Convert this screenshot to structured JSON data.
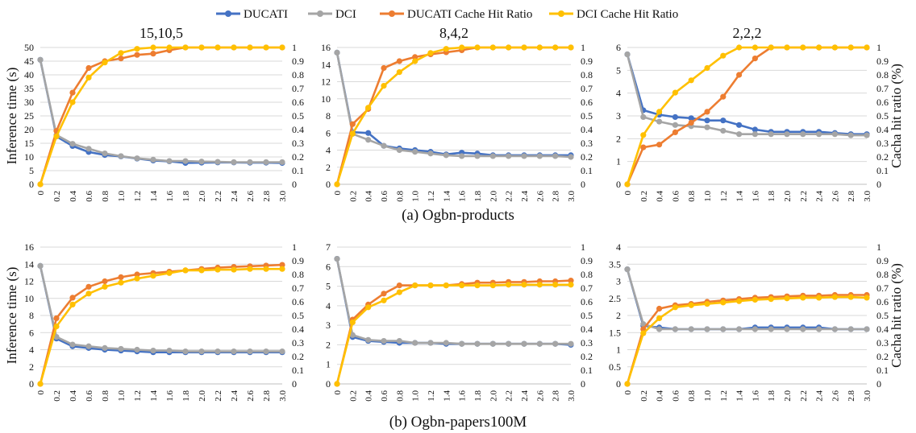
{
  "legend": [
    {
      "name": "DUCATI",
      "color": "#4472c4"
    },
    {
      "name": "DCI",
      "color": "#a5a5a5"
    },
    {
      "name": "DUCATI Cache Hit Ratio",
      "color": "#ed7d31"
    },
    {
      "name": "DCI Cache Hit Ratio",
      "color": "#ffc000"
    }
  ],
  "rows": [
    {
      "caption": "(a) Ogbn-products"
    },
    {
      "caption": "(b) Ogbn-papers100M"
    }
  ],
  "axes": {
    "left_title": "Inference time (s)",
    "right_title": "Cacha hit ratio (%)"
  },
  "chart_data": [
    {
      "type": "line",
      "title": "15,10,5",
      "ylabel": "Inference time (s)",
      "y2label": "Cacha hit ratio (%)",
      "x": [
        "0",
        "0.2",
        "0.4",
        "0.6",
        "0.8",
        "1.0",
        "1.2",
        "1.4",
        "1.6",
        "1.8",
        "2.0",
        "2.2",
        "2.4",
        "2.6",
        "2.8",
        "3.0"
      ],
      "ylim": [
        0,
        50
      ],
      "yticks": [
        0,
        5,
        10,
        15,
        20,
        25,
        30,
        35,
        40,
        45,
        50
      ],
      "y2lim": [
        0,
        1
      ],
      "y2ticks": [
        "0",
        "0.1",
        "0.2",
        "0.3",
        "0.4",
        "0.5",
        "0.6",
        "0.7",
        "0.8",
        "0.9",
        "1"
      ],
      "series": [
        {
          "name": "DUCATI",
          "axis": "left",
          "values": [
            45.5,
            17.5,
            14,
            11.8,
            10.7,
            10.2,
            9.4,
            8.7,
            8.4,
            7.8,
            7.9,
            8,
            8,
            7.9,
            7.9,
            7.8
          ]
        },
        {
          "name": "DCI",
          "axis": "left",
          "values": [
            45.5,
            18,
            14.8,
            13,
            11.3,
            10.3,
            9.5,
            9,
            8.5,
            8.5,
            8.3,
            8.2,
            8.1,
            8.1,
            8.1,
            8.1
          ]
        },
        {
          "name": "DUCATI Cache Hit Ratio",
          "axis": "right",
          "values": [
            0,
            0.39,
            0.67,
            0.85,
            0.9,
            0.92,
            0.946,
            0.955,
            0.98,
            1,
            1,
            1,
            1,
            1,
            1,
            1
          ]
        },
        {
          "name": "DCI Cache Hit Ratio",
          "axis": "right",
          "values": [
            0,
            0.35,
            0.6,
            0.78,
            0.89,
            0.96,
            0.99,
            1,
            1,
            1,
            1,
            1,
            1,
            1,
            1,
            1
          ]
        }
      ]
    },
    {
      "type": "line",
      "title": "8,4,2",
      "ylabel": "Inference time (s)",
      "y2label": "Cacha hit ratio (%)",
      "x": [
        "0",
        "0.2",
        "0.4",
        "0.6",
        "0.8",
        "1.0",
        "1.2",
        "1.4",
        "1.6",
        "1.8",
        "2.0",
        "2.2",
        "2.4",
        "2.6",
        "2.8",
        "3.0"
      ],
      "ylim": [
        0,
        16
      ],
      "yticks": [
        0,
        2,
        4,
        6,
        8,
        10,
        12,
        14,
        16
      ],
      "y2lim": [
        0,
        1
      ],
      "y2ticks": [
        "0",
        "0.1",
        "0.2",
        "0.3",
        "0.4",
        "0.5",
        "0.6",
        "0.7",
        "0.8",
        "0.9",
        "1"
      ],
      "series": [
        {
          "name": "DUCATI",
          "axis": "left",
          "values": [
            15.4,
            6.1,
            6,
            4.5,
            4.2,
            4,
            3.8,
            3.5,
            3.7,
            3.6,
            3.4,
            3.4,
            3.4,
            3.4,
            3.4,
            3.4
          ]
        },
        {
          "name": "DCI",
          "axis": "left",
          "values": [
            15.4,
            5.9,
            5.2,
            4.5,
            4,
            3.8,
            3.6,
            3.4,
            3.3,
            3.3,
            3.3,
            3.3,
            3.3,
            3.3,
            3.3,
            3.2
          ]
        },
        {
          "name": "DUCATI Cache Hit Ratio",
          "axis": "right",
          "values": [
            0,
            0.44,
            0.55,
            0.85,
            0.9,
            0.93,
            0.95,
            0.965,
            0.98,
            1,
            1,
            1,
            1,
            1,
            1,
            1
          ]
        },
        {
          "name": "DCI Cache Hit Ratio",
          "axis": "right",
          "values": [
            0,
            0.37,
            0.56,
            0.72,
            0.82,
            0.9,
            0.96,
            0.99,
            1,
            1,
            1,
            1,
            1,
            1,
            1,
            1
          ]
        }
      ]
    },
    {
      "type": "line",
      "title": "2,2,2",
      "ylabel": "Inference time (s)",
      "y2label": "Cacha hit ratio (%)",
      "x": [
        "0",
        "0.2",
        "0.4",
        "0.6",
        "0.8",
        "1.0",
        "1.2",
        "1.4",
        "1.6",
        "1.8",
        "2.0",
        "2.2",
        "2.4",
        "2.6",
        "2.8",
        "3.0"
      ],
      "ylim": [
        0,
        6
      ],
      "yticks": [
        0,
        1,
        2,
        3,
        4,
        5,
        6
      ],
      "y2lim": [
        0,
        1
      ],
      "y2ticks": [
        "0",
        "0.1",
        "0.2",
        "0.3",
        "0.4",
        "0.5",
        "0.6",
        "0.7",
        "0.8",
        "0.9",
        "1"
      ],
      "series": [
        {
          "name": "DUCATI",
          "axis": "left",
          "values": [
            5.7,
            3.25,
            3.05,
            2.95,
            2.9,
            2.8,
            2.8,
            2.6,
            2.4,
            2.3,
            2.3,
            2.3,
            2.3,
            2.25,
            2.2,
            2.2
          ]
        },
        {
          "name": "DCI",
          "axis": "left",
          "values": [
            5.7,
            2.95,
            2.75,
            2.6,
            2.55,
            2.5,
            2.35,
            2.2,
            2.2,
            2.2,
            2.2,
            2.2,
            2.2,
            2.2,
            2.15,
            2.15
          ]
        },
        {
          "name": "DUCATI Cache Hit Ratio",
          "axis": "right",
          "values": [
            0,
            0.27,
            0.29,
            0.38,
            0.45,
            0.53,
            0.64,
            0.8,
            0.92,
            1,
            1,
            1,
            1,
            1,
            1,
            1
          ]
        },
        {
          "name": "DCI Cache Hit Ratio",
          "axis": "right",
          "values": [
            0,
            0.36,
            0.53,
            0.67,
            0.76,
            0.85,
            0.94,
            1,
            1,
            1,
            1,
            1,
            1,
            1,
            1,
            1
          ]
        }
      ]
    },
    {
      "type": "line",
      "title": "",
      "ylabel": "Inference time (s)",
      "y2label": "Cacha hit ratio (%)",
      "x": [
        "0",
        "0.2",
        "0.4",
        "0.6",
        "0.8",
        "1.0",
        "1.2",
        "1.4",
        "1.6",
        "1.8",
        "2.0",
        "2.2",
        "2.4",
        "2.6",
        "2.8",
        "3.0"
      ],
      "ylim": [
        0,
        16
      ],
      "yticks": [
        0,
        2,
        4,
        6,
        8,
        10,
        12,
        14,
        16
      ],
      "y2lim": [
        0,
        1
      ],
      "y2ticks": [
        "0",
        "0.1",
        "0.2",
        "0.3",
        "0.4",
        "0.5",
        "0.6",
        "0.7",
        "0.8",
        "0.9",
        "1"
      ],
      "series": [
        {
          "name": "DUCATI",
          "axis": "left",
          "values": [
            13.8,
            5.3,
            4.4,
            4.2,
            4,
            3.9,
            3.8,
            3.7,
            3.7,
            3.7,
            3.7,
            3.7,
            3.7,
            3.7,
            3.7,
            3.7
          ]
        },
        {
          "name": "DCI",
          "axis": "left",
          "values": [
            13.8,
            5.5,
            4.6,
            4.4,
            4.2,
            4.1,
            4,
            3.9,
            3.9,
            3.8,
            3.8,
            3.8,
            3.8,
            3.8,
            3.8,
            3.8
          ]
        },
        {
          "name": "DUCATI Cache Hit Ratio",
          "axis": "right",
          "values": [
            0,
            0.48,
            0.63,
            0.71,
            0.75,
            0.78,
            0.8,
            0.81,
            0.82,
            0.83,
            0.84,
            0.85,
            0.855,
            0.86,
            0.865,
            0.87
          ]
        },
        {
          "name": "DCI Cache Hit Ratio",
          "axis": "right",
          "values": [
            0,
            0.42,
            0.58,
            0.66,
            0.71,
            0.74,
            0.77,
            0.79,
            0.81,
            0.83,
            0.83,
            0.835,
            0.835,
            0.84,
            0.84,
            0.84
          ]
        }
      ]
    },
    {
      "type": "line",
      "title": "",
      "ylabel": "Inference time (s)",
      "y2label": "Cacha hit ratio (%)",
      "x": [
        "0",
        "0.2",
        "0.4",
        "0.6",
        "0.8",
        "1.0",
        "1.2",
        "1.4",
        "1.6",
        "1.8",
        "2.0",
        "2.2",
        "2.4",
        "2.6",
        "2.8",
        "3.0"
      ],
      "ylim": [
        0,
        7
      ],
      "yticks": [
        0,
        1,
        2,
        3,
        4,
        5,
        6,
        7
      ],
      "y2lim": [
        0,
        1
      ],
      "y2ticks": [
        "0",
        "0.1",
        "0.2",
        "0.3",
        "0.4",
        "0.5",
        "0.6",
        "0.7",
        "0.8",
        "0.9",
        "1"
      ],
      "series": [
        {
          "name": "DUCATI",
          "axis": "left",
          "values": [
            6.4,
            2.4,
            2.2,
            2.15,
            2.1,
            2.1,
            2.1,
            2.05,
            2.05,
            2.05,
            2.05,
            2.05,
            2.05,
            2.05,
            2.05,
            2.0
          ]
        },
        {
          "name": "DCI",
          "axis": "left",
          "values": [
            6.4,
            2.5,
            2.25,
            2.2,
            2.2,
            2.1,
            2.1,
            2.1,
            2.05,
            2.05,
            2.05,
            2.05,
            2.05,
            2.05,
            2.05,
            2.05
          ]
        },
        {
          "name": "DUCATI Cache Hit Ratio",
          "axis": "right",
          "values": [
            0,
            0.47,
            0.58,
            0.66,
            0.72,
            0.72,
            0.72,
            0.72,
            0.73,
            0.74,
            0.74,
            0.745,
            0.745,
            0.75,
            0.75,
            0.755
          ]
        },
        {
          "name": "DCI Cache Hit Ratio",
          "axis": "right",
          "values": [
            0,
            0.45,
            0.56,
            0.61,
            0.67,
            0.72,
            0.72,
            0.72,
            0.72,
            0.72,
            0.72,
            0.725,
            0.725,
            0.725,
            0.725,
            0.725
          ]
        }
      ]
    },
    {
      "type": "line",
      "title": "",
      "ylabel": "Inference time (s)",
      "y2label": "Cacha hit ratio (%)",
      "x": [
        "0",
        "0.2",
        "0.4",
        "0.6",
        "0.8",
        "1.0",
        "1.2",
        "1.4",
        "1.6",
        "1.8",
        "2.0",
        "2.2",
        "2.4",
        "2.6",
        "2.8",
        "3.0"
      ],
      "ylim": [
        0,
        4
      ],
      "yticks": [
        "0",
        "0.5",
        "1",
        "1.5",
        "2",
        "2.5",
        "3",
        "3.5",
        "4"
      ],
      "y2lim": [
        0,
        1
      ],
      "y2ticks": [
        "0",
        "0.1",
        "0.2",
        "0.3",
        "0.4",
        "0.5",
        "0.6",
        "0.7",
        "0.8",
        "0.9",
        "1"
      ],
      "series": [
        {
          "name": "DUCATI",
          "axis": "left",
          "values": [
            3.35,
            1.7,
            1.65,
            1.6,
            1.6,
            1.6,
            1.6,
            1.6,
            1.65,
            1.65,
            1.65,
            1.65,
            1.65,
            1.6,
            1.6,
            1.6
          ]
        },
        {
          "name": "DCI",
          "axis": "left",
          "values": [
            3.35,
            1.75,
            1.6,
            1.6,
            1.6,
            1.6,
            1.6,
            1.6,
            1.6,
            1.6,
            1.6,
            1.6,
            1.6,
            1.6,
            1.6,
            1.6
          ]
        },
        {
          "name": "DUCATI Cache Hit Ratio",
          "axis": "right",
          "values": [
            0,
            0.4,
            0.55,
            0.575,
            0.585,
            0.6,
            0.61,
            0.62,
            0.63,
            0.635,
            0.64,
            0.645,
            0.645,
            0.65,
            0.65,
            0.65
          ]
        },
        {
          "name": "DCI Cache Hit Ratio",
          "axis": "right",
          "values": [
            0,
            0.37,
            0.48,
            0.56,
            0.575,
            0.585,
            0.595,
            0.605,
            0.615,
            0.62,
            0.625,
            0.63,
            0.63,
            0.635,
            0.635,
            0.63
          ]
        }
      ]
    }
  ]
}
